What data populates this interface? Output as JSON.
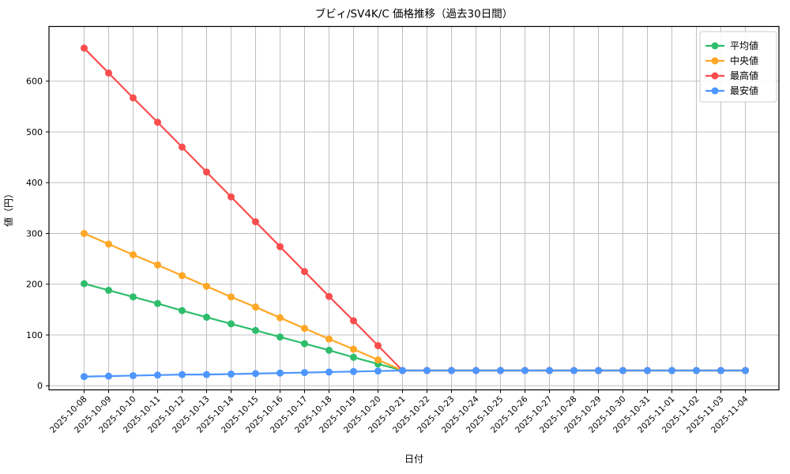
{
  "figure": {
    "title": "ブビィ/SV4K/C 価格推移（過去30日間）",
    "xlabel": "日付",
    "ylabel": "値（円）"
  },
  "legend": {
    "position": "upper right",
    "items": [
      "平均値",
      "中央値",
      "最高値",
      "最安値"
    ]
  },
  "colors": {
    "average": "#2ebd6b",
    "median": "#ffa726",
    "max": "#fa4d4d",
    "min": "#4d96ff",
    "grid": "#c0c0c0",
    "spine": "#000000",
    "legend_border": "#cccccc"
  },
  "chart_data": {
    "type": "line",
    "title": "ブビィ/SV4K/C 価格推移（過去30日間）",
    "xlabel": "日付",
    "ylabel": "値（円）",
    "grid": true,
    "legend_position": "upper right",
    "marker": "circle",
    "yticks": [
      0,
      100,
      200,
      300,
      400,
      500,
      600
    ],
    "ylim": [
      -10,
      708
    ],
    "x": [
      "2025-10-08",
      "2025-10-09",
      "2025-10-10",
      "2025-10-11",
      "2025-10-12",
      "2025-10-13",
      "2025-10-14",
      "2025-10-15",
      "2025-10-16",
      "2025-10-17",
      "2025-10-18",
      "2025-10-19",
      "2025-10-20",
      "2025-10-21",
      "2025-10-22",
      "2025-10-23",
      "2025-10-24",
      "2025-10-25",
      "2025-10-26",
      "2025-10-27",
      "2025-10-28",
      "2025-10-29",
      "2025-10-30",
      "2025-10-31",
      "2025-11-01",
      "2025-11-02",
      "2025-11-03",
      "2025-11-04"
    ],
    "series": [
      {
        "name": "平均値",
        "color": "#2ebd6b",
        "values": [
          201,
          188,
          175,
          162,
          148,
          135,
          122,
          109,
          96,
          83,
          70,
          56,
          43,
          30,
          30,
          30,
          30,
          30,
          30,
          30,
          30,
          30,
          30,
          30,
          30,
          30,
          30,
          30
        ]
      },
      {
        "name": "中央値",
        "color": "#ffa726",
        "values": [
          300,
          279,
          258,
          238,
          217,
          196,
          175,
          155,
          134,
          113,
          92,
          72,
          51,
          30,
          30,
          30,
          30,
          30,
          30,
          30,
          30,
          30,
          30,
          30,
          30,
          30,
          30,
          30
        ]
      },
      {
        "name": "最高値",
        "color": "#fa4d4d",
        "values": [
          665,
          616,
          567,
          519,
          470,
          421,
          372,
          323,
          274,
          225,
          176,
          128,
          79,
          30,
          30,
          30,
          30,
          30,
          30,
          30,
          30,
          30,
          30,
          30,
          30,
          30,
          30,
          30
        ]
      },
      {
        "name": "最安値",
        "color": "#4d96ff",
        "values": [
          18,
          19,
          20,
          21,
          22,
          22,
          23,
          24,
          25,
          26,
          27,
          28,
          29,
          30,
          30,
          30,
          30,
          30,
          30,
          30,
          30,
          30,
          30,
          30,
          30,
          30,
          30,
          30
        ]
      }
    ]
  }
}
